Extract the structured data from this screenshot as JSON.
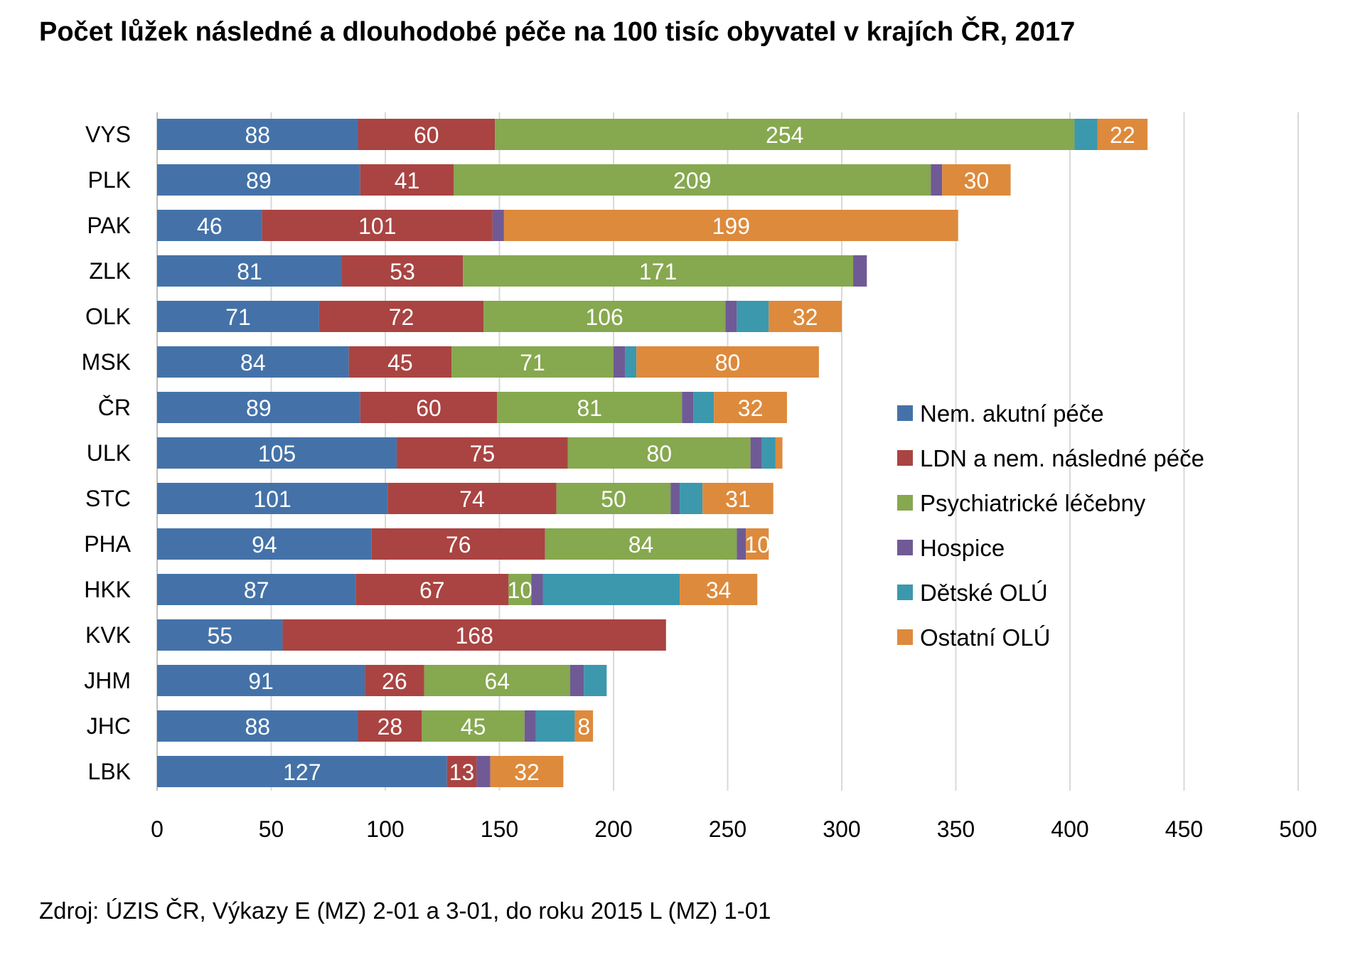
{
  "chart_data": {
    "type": "bar",
    "orientation": "horizontal",
    "stacked": true,
    "title": "Počet lůžek následné a dlouhodobé péče na 100 tisíc obyvatel v krajích ČR, 2017",
    "source": "Zdroj: ÚZIS ČR, Výkazy E (MZ) 2-01 a 3-01, do roku 2015 L (MZ) 1-01",
    "xlim": [
      0,
      500
    ],
    "xticks": [
      0,
      50,
      100,
      150,
      200,
      250,
      300,
      350,
      400,
      450,
      500
    ],
    "grid": true,
    "legend_position": "right",
    "categories": [
      "VYS",
      "PLK",
      "PAK",
      "ZLK",
      "OLK",
      "MSK",
      "ČR",
      "ULK",
      "STC",
      "PHA",
      "HKK",
      "KVK",
      "JHM",
      "JHC",
      "LBK"
    ],
    "series": [
      {
        "name": "Nem. akutní péče",
        "color": "#4472a8",
        "values": [
          88,
          89,
          46,
          81,
          71,
          84,
          89,
          105,
          101,
          94,
          87,
          55,
          91,
          88,
          127
        ],
        "labels": [
          "88",
          "89",
          "46",
          "81",
          "71",
          "84",
          "89",
          "105",
          "101",
          "94",
          "87",
          "55",
          "91",
          "88",
          "127"
        ]
      },
      {
        "name": "LDN a nem. následné péče",
        "color": "#a94442",
        "values": [
          60,
          41,
          101,
          53,
          72,
          45,
          60,
          75,
          74,
          76,
          67,
          168,
          26,
          28,
          13
        ],
        "labels": [
          "60",
          "41",
          "101",
          "53",
          "72",
          "45",
          "60",
          "75",
          "74",
          "76",
          "67",
          "168",
          "26",
          "28",
          "13"
        ]
      },
      {
        "name": "Psychiatrické léčebny",
        "color": "#86a84f",
        "values": [
          254,
          209,
          0,
          171,
          106,
          71,
          81,
          80,
          50,
          84,
          10,
          0,
          64,
          45,
          0
        ],
        "labels": [
          "254",
          "209",
          "",
          "171",
          "106",
          "71",
          "81",
          "80",
          "50",
          "84",
          "10",
          "",
          "64",
          "45",
          ""
        ]
      },
      {
        "name": "Hospice",
        "color": "#6f5a96",
        "values": [
          0,
          5,
          5,
          6,
          5,
          5,
          5,
          5,
          4,
          4,
          5,
          0,
          6,
          5,
          6
        ],
        "labels": [
          "",
          "",
          "",
          "",
          "",
          "",
          "",
          "",
          "",
          "",
          "",
          "",
          "",
          "",
          ""
        ]
      },
      {
        "name": "Dětské OLÚ",
        "color": "#3c98ad",
        "values": [
          10,
          0,
          0,
          0,
          14,
          5,
          9,
          6,
          10,
          0,
          60,
          0,
          10,
          17,
          0
        ],
        "labels": [
          "",
          "",
          "",
          "",
          "",
          "",
          "",
          "",
          "",
          "",
          "",
          "",
          "",
          "",
          ""
        ]
      },
      {
        "name": "Ostatní OLÚ",
        "color": "#dd8a3c",
        "values": [
          22,
          30,
          199,
          0,
          32,
          80,
          32,
          3,
          31,
          10,
          34,
          0,
          0,
          8,
          32
        ],
        "labels": [
          "22",
          "30",
          "199",
          "",
          "32",
          "80",
          "32",
          "",
          "31",
          "10",
          "34",
          "",
          "",
          "8",
          "32"
        ]
      }
    ]
  }
}
